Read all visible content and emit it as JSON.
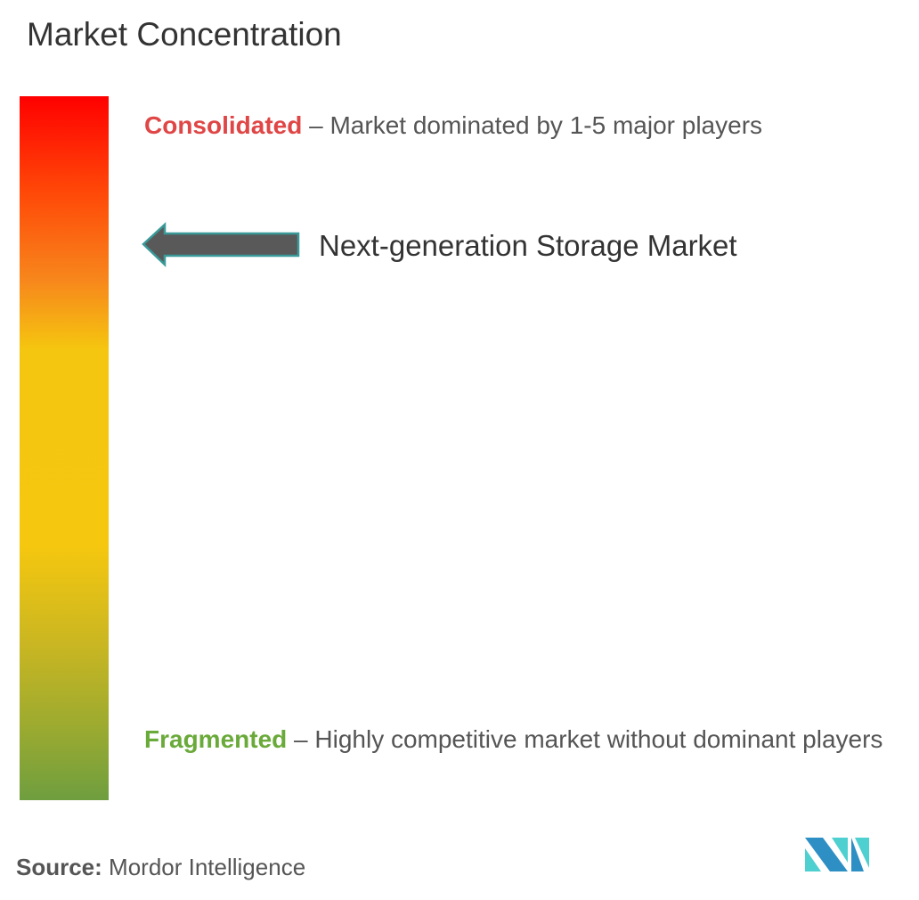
{
  "title": "Market Concentration",
  "scale": {
    "consolidated": {
      "label": "Consolidated",
      "description": " – Market dominated by 1-5 major players",
      "color": "#e04646"
    },
    "fragmented": {
      "label": "Fragmented",
      "description": " – Highly competitive market without dominant players",
      "color": "#6aaa3a"
    },
    "gradient_colors": [
      "#ff0000",
      "#f7861c",
      "#f5c70f",
      "#6f9e3f"
    ]
  },
  "marker": {
    "label": "Next-generation Storage Market",
    "icon": "arrow-left-icon",
    "position_level": "high consolidation (upper-mid)"
  },
  "source": {
    "label": "Source:",
    "value": " Mordor Intelligence"
  },
  "logo": {
    "name": "Mordor Intelligence",
    "icon": "mordor-logo-icon",
    "colors": [
      "#2e8fc4",
      "#4ecfd0"
    ]
  }
}
